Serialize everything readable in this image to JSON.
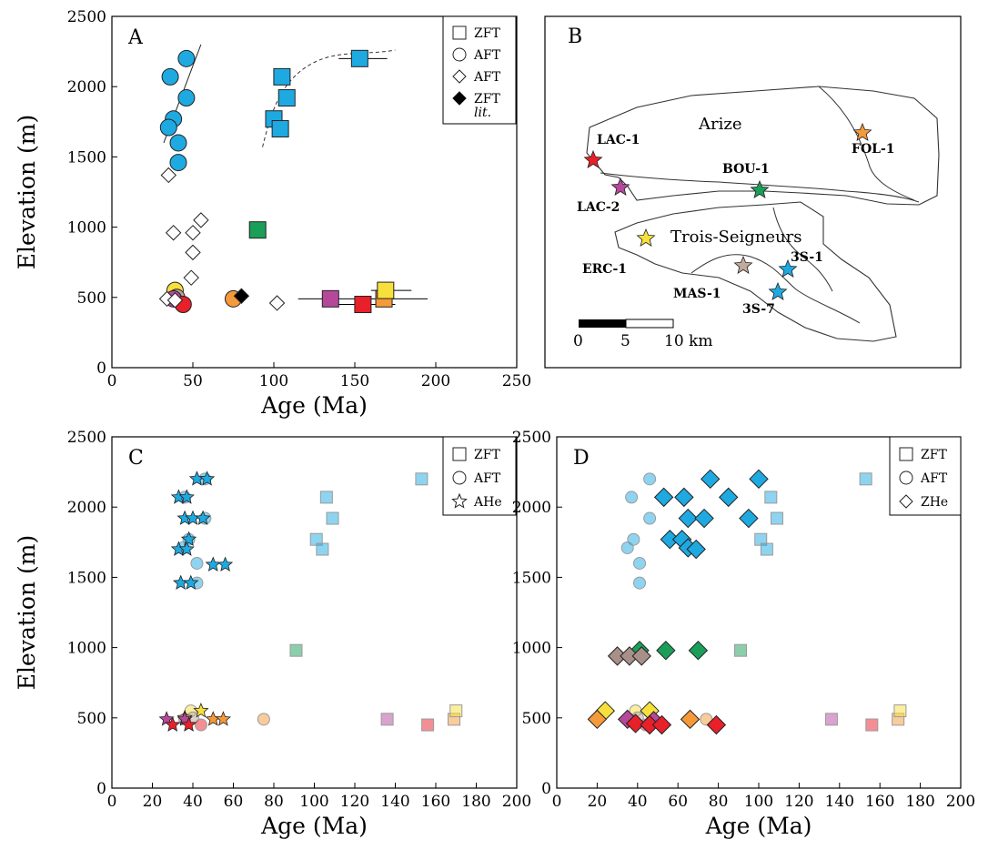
{
  "chart_data": [
    {
      "panel": "A",
      "type": "scatter",
      "xlabel": "Age (Ma)",
      "ylabel": "Elevation (m)",
      "xlim": [
        0,
        250
      ],
      "ylim": [
        0,
        2500
      ],
      "xticks": [
        0,
        50,
        100,
        150,
        200,
        250
      ],
      "yticks": [
        0,
        500,
        1000,
        1500,
        2000,
        2500
      ],
      "legend": {
        "position": "top-right",
        "entries": [
          {
            "marker": "square-open",
            "label": "ZFT"
          },
          {
            "marker": "circle-open",
            "label": "AFT"
          },
          {
            "marker": "diamond-open",
            "label": "AFT"
          },
          {
            "marker": "diamond-filled",
            "label": "ZFT",
            "sublabel": "lit."
          }
        ]
      },
      "series": [
        {
          "marker": "circle",
          "points": [
            {
              "x": 46,
              "y": 2200,
              "color": "#1ea9e1"
            },
            {
              "x": 36,
              "y": 2070,
              "color": "#1ea9e1"
            },
            {
              "x": 46,
              "y": 1920,
              "color": "#1ea9e1"
            },
            {
              "x": 38,
              "y": 1770,
              "color": "#1ea9e1"
            },
            {
              "x": 35,
              "y": 1710,
              "color": "#1ea9e1"
            },
            {
              "x": 41,
              "y": 1600,
              "color": "#1ea9e1"
            },
            {
              "x": 41,
              "y": 1460,
              "color": "#1ea9e1"
            },
            {
              "x": 39,
              "y": 550,
              "color": "#f7e03c"
            },
            {
              "x": 40,
              "y": 500,
              "color": "#b7a39b"
            },
            {
              "x": 38,
              "y": 490,
              "color": "#b6489c"
            },
            {
              "x": 44,
              "y": 450,
              "color": "#e8202a"
            },
            {
              "x": 75,
              "y": 490,
              "color": "#f49a3a"
            }
          ]
        },
        {
          "marker": "square",
          "points": [
            {
              "x": 153,
              "y": 2200,
              "color": "#1ea9e1",
              "xerr": [
                140,
                170
              ]
            },
            {
              "x": 105,
              "y": 2070,
              "color": "#1ea9e1"
            },
            {
              "x": 108,
              "y": 1920,
              "color": "#1ea9e1"
            },
            {
              "x": 100,
              "y": 1770,
              "color": "#1ea9e1"
            },
            {
              "x": 104,
              "y": 1700,
              "color": "#1ea9e1"
            },
            {
              "x": 90,
              "y": 980,
              "color": "#1a9e58"
            },
            {
              "x": 135,
              "y": 490,
              "color": "#b6489c",
              "xerr": [
                115,
                155
              ]
            },
            {
              "x": 155,
              "y": 450,
              "color": "#e8202a",
              "xerr": [
                135,
                175
              ]
            },
            {
              "x": 168,
              "y": 490,
              "color": "#f49a3a",
              "xerr": [
                150,
                195
              ]
            },
            {
              "x": 169,
              "y": 550,
              "color": "#f7e03c",
              "xerr": [
                160,
                185
              ]
            }
          ]
        },
        {
          "marker": "diamond-open",
          "points": [
            {
              "x": 35,
              "y": 1370
            },
            {
              "x": 55,
              "y": 1050
            },
            {
              "x": 38,
              "y": 960
            },
            {
              "x": 50,
              "y": 960
            },
            {
              "x": 50,
              "y": 820
            },
            {
              "x": 49,
              "y": 640
            },
            {
              "x": 102,
              "y": 460
            },
            {
              "x": 34,
              "y": 490
            },
            {
              "x": 39,
              "y": 480
            }
          ]
        },
        {
          "marker": "diamond-filled",
          "points": [
            {
              "x": 80,
              "y": 510,
              "color": "#000000"
            }
          ]
        }
      ]
    },
    {
      "panel": "C",
      "type": "scatter",
      "xlabel": "Age (Ma)",
      "ylabel": "Elevation (m)",
      "xlim": [
        0,
        200
      ],
      "ylim": [
        0,
        2500
      ],
      "xticks": [
        0,
        20,
        40,
        60,
        80,
        100,
        120,
        140,
        160,
        180,
        200
      ],
      "yticks": [
        0,
        500,
        1000,
        1500,
        2000,
        2500
      ],
      "legend": {
        "position": "top-right",
        "entries": [
          {
            "marker": "square-open",
            "label": "ZFT"
          },
          {
            "marker": "circle-open",
            "label": "AFT"
          },
          {
            "marker": "star-open",
            "label": "AHe"
          }
        ]
      },
      "series": [
        {
          "marker": "circle-faded",
          "points": [
            {
              "x": 46,
              "y": 2200,
              "color": "#1ea9e1"
            },
            {
              "x": 36,
              "y": 2070,
              "color": "#1ea9e1"
            },
            {
              "x": 46,
              "y": 1920,
              "color": "#1ea9e1"
            },
            {
              "x": 38,
              "y": 1770,
              "color": "#1ea9e1"
            },
            {
              "x": 35,
              "y": 1710,
              "color": "#1ea9e1"
            },
            {
              "x": 42,
              "y": 1600,
              "color": "#1ea9e1"
            },
            {
              "x": 42,
              "y": 1460,
              "color": "#1ea9e1"
            },
            {
              "x": 39,
              "y": 550,
              "color": "#f7e03c"
            },
            {
              "x": 40,
              "y": 500,
              "color": "#b7a39b"
            },
            {
              "x": 36,
              "y": 490,
              "color": "#b6489c"
            },
            {
              "x": 44,
              "y": 450,
              "color": "#e8202a"
            },
            {
              "x": 75,
              "y": 490,
              "color": "#f49a3a"
            }
          ]
        },
        {
          "marker": "square-faded",
          "points": [
            {
              "x": 153,
              "y": 2200,
              "color": "#1ea9e1"
            },
            {
              "x": 106,
              "y": 2070,
              "color": "#1ea9e1"
            },
            {
              "x": 109,
              "y": 1920,
              "color": "#1ea9e1"
            },
            {
              "x": 101,
              "y": 1770,
              "color": "#1ea9e1"
            },
            {
              "x": 104,
              "y": 1700,
              "color": "#1ea9e1"
            },
            {
              "x": 91,
              "y": 980,
              "color": "#1a9e58"
            },
            {
              "x": 136,
              "y": 490,
              "color": "#b6489c"
            },
            {
              "x": 156,
              "y": 450,
              "color": "#e8202a"
            },
            {
              "x": 169,
              "y": 490,
              "color": "#f49a3a"
            },
            {
              "x": 170,
              "y": 550,
              "color": "#f7e03c"
            }
          ]
        },
        {
          "marker": "star",
          "points": [
            {
              "x": 42,
              "y": 2200,
              "color": "#1ea9e1"
            },
            {
              "x": 47,
              "y": 2200,
              "color": "#1ea9e1"
            },
            {
              "x": 33,
              "y": 2070,
              "color": "#1ea9e1"
            },
            {
              "x": 37,
              "y": 2070,
              "color": "#1ea9e1"
            },
            {
              "x": 36,
              "y": 1920,
              "color": "#1ea9e1"
            },
            {
              "x": 40,
              "y": 1920,
              "color": "#1ea9e1"
            },
            {
              "x": 45,
              "y": 1920,
              "color": "#1ea9e1"
            },
            {
              "x": 38,
              "y": 1770,
              "color": "#1ea9e1"
            },
            {
              "x": 33,
              "y": 1700,
              "color": "#1ea9e1"
            },
            {
              "x": 37,
              "y": 1700,
              "color": "#1ea9e1"
            },
            {
              "x": 50,
              "y": 1590,
              "color": "#1ea9e1"
            },
            {
              "x": 56,
              "y": 1590,
              "color": "#1ea9e1"
            },
            {
              "x": 34,
              "y": 1460,
              "color": "#1ea9e1"
            },
            {
              "x": 39,
              "y": 1460,
              "color": "#1ea9e1"
            },
            {
              "x": 44,
              "y": 550,
              "color": "#f7e03c"
            },
            {
              "x": 36,
              "y": 500,
              "color": "#f7e03c"
            },
            {
              "x": 27,
              "y": 490,
              "color": "#b6489c"
            },
            {
              "x": 36,
              "y": 490,
              "color": "#b6489c"
            },
            {
              "x": 30,
              "y": 450,
              "color": "#e8202a"
            },
            {
              "x": 38,
              "y": 450,
              "color": "#e8202a"
            },
            {
              "x": 50,
              "y": 490,
              "color": "#f49a3a"
            },
            {
              "x": 55,
              "y": 490,
              "color": "#f49a3a"
            }
          ]
        }
      ]
    },
    {
      "panel": "D",
      "type": "scatter",
      "xlabel": "Age (Ma)",
      "ylabel": "",
      "xlim": [
        0,
        200
      ],
      "ylim": [
        0,
        2500
      ],
      "xticks": [
        0,
        20,
        40,
        60,
        80,
        100,
        120,
        140,
        160,
        180,
        200
      ],
      "yticks": [
        0,
        500,
        1000,
        1500,
        2000,
        2500
      ],
      "legend": {
        "position": "top-right",
        "entries": [
          {
            "marker": "square-open",
            "label": "ZFT"
          },
          {
            "marker": "circle-open",
            "label": "AFT"
          },
          {
            "marker": "diamond-open",
            "label": "ZHe"
          }
        ]
      },
      "series": [
        {
          "marker": "circle-faded",
          "points": [
            {
              "x": 46,
              "y": 2200,
              "color": "#1ea9e1"
            },
            {
              "x": 37,
              "y": 2070,
              "color": "#1ea9e1"
            },
            {
              "x": 46,
              "y": 1920,
              "color": "#1ea9e1"
            },
            {
              "x": 38,
              "y": 1770,
              "color": "#1ea9e1"
            },
            {
              "x": 35,
              "y": 1710,
              "color": "#1ea9e1"
            },
            {
              "x": 41,
              "y": 1600,
              "color": "#1ea9e1"
            },
            {
              "x": 41,
              "y": 1460,
              "color": "#1ea9e1"
            },
            {
              "x": 39,
              "y": 550,
              "color": "#f7e03c"
            },
            {
              "x": 40,
              "y": 500,
              "color": "#b7a39b"
            },
            {
              "x": 36,
              "y": 490,
              "color": "#b6489c"
            },
            {
              "x": 44,
              "y": 450,
              "color": "#e8202a"
            },
            {
              "x": 74,
              "y": 490,
              "color": "#f49a3a"
            }
          ]
        },
        {
          "marker": "square-faded",
          "points": [
            {
              "x": 153,
              "y": 2200,
              "color": "#1ea9e1"
            },
            {
              "x": 106,
              "y": 2070,
              "color": "#1ea9e1"
            },
            {
              "x": 109,
              "y": 1920,
              "color": "#1ea9e1"
            },
            {
              "x": 101,
              "y": 1770,
              "color": "#1ea9e1"
            },
            {
              "x": 104,
              "y": 1700,
              "color": "#1ea9e1"
            },
            {
              "x": 91,
              "y": 980,
              "color": "#1a9e58"
            },
            {
              "x": 136,
              "y": 490,
              "color": "#b6489c"
            },
            {
              "x": 156,
              "y": 450,
              "color": "#e8202a"
            },
            {
              "x": 169,
              "y": 490,
              "color": "#f49a3a"
            },
            {
              "x": 170,
              "y": 550,
              "color": "#f7e03c"
            }
          ]
        },
        {
          "marker": "diamond",
          "points": [
            {
              "x": 76,
              "y": 2200,
              "color": "#1ea9e1"
            },
            {
              "x": 100,
              "y": 2200,
              "color": "#1ea9e1"
            },
            {
              "x": 53,
              "y": 2070,
              "color": "#1ea9e1"
            },
            {
              "x": 63,
              "y": 2070,
              "color": "#1ea9e1"
            },
            {
              "x": 85,
              "y": 2070,
              "color": "#1ea9e1"
            },
            {
              "x": 65,
              "y": 1920,
              "color": "#1ea9e1"
            },
            {
              "x": 73,
              "y": 1920,
              "color": "#1ea9e1"
            },
            {
              "x": 95,
              "y": 1920,
              "color": "#1ea9e1"
            },
            {
              "x": 56,
              "y": 1770,
              "color": "#1ea9e1"
            },
            {
              "x": 62,
              "y": 1770,
              "color": "#1ea9e1"
            },
            {
              "x": 65,
              "y": 1710,
              "color": "#1ea9e1"
            },
            {
              "x": 69,
              "y": 1700,
              "color": "#1ea9e1"
            },
            {
              "x": 41,
              "y": 980,
              "color": "#1a9e58"
            },
            {
              "x": 54,
              "y": 980,
              "color": "#1a9e58"
            },
            {
              "x": 70,
              "y": 980,
              "color": "#1a9e58"
            },
            {
              "x": 30,
              "y": 940,
              "color": "#a89088"
            },
            {
              "x": 36,
              "y": 940,
              "color": "#a89088"
            },
            {
              "x": 42,
              "y": 940,
              "color": "#a89088"
            },
            {
              "x": 24,
              "y": 550,
              "color": "#f7e03c"
            },
            {
              "x": 46,
              "y": 550,
              "color": "#f7e03c"
            },
            {
              "x": 20,
              "y": 490,
              "color": "#f49a3a"
            },
            {
              "x": 66,
              "y": 490,
              "color": "#f49a3a"
            },
            {
              "x": 35,
              "y": 490,
              "color": "#b6489c"
            },
            {
              "x": 48,
              "y": 480,
              "color": "#b6489c"
            },
            {
              "x": 39,
              "y": 460,
              "color": "#e8202a"
            },
            {
              "x": 46,
              "y": 450,
              "color": "#e8202a"
            },
            {
              "x": 52,
              "y": 450,
              "color": "#e8202a"
            },
            {
              "x": 79,
              "y": 450,
              "color": "#e8202a"
            }
          ]
        }
      ]
    }
  ],
  "map": {
    "panel": "B",
    "regions": [
      "Arize",
      "Trois-Seigneurs"
    ],
    "scale": {
      "ticks": [
        "0",
        "5",
        "10 km"
      ]
    },
    "samples": [
      {
        "label": "LAC-1",
        "color": "#e8202a"
      },
      {
        "label": "LAC-2",
        "color": "#b6489c"
      },
      {
        "label": "BOU-1",
        "color": "#1a9e58"
      },
      {
        "label": "FOL-1",
        "color": "#f49a3a"
      },
      {
        "label": "ERC-1",
        "color": "#f7e03c"
      },
      {
        "label": "MAS-1",
        "color": "#c2aa9c"
      },
      {
        "label": "3S-1",
        "color": "#1ea9e1"
      },
      {
        "label": "3S-7",
        "color": "#1ea9e1"
      }
    ]
  }
}
